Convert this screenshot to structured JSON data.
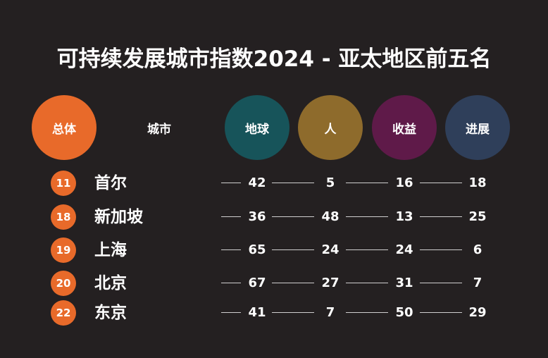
{
  "chart_data": {
    "type": "table",
    "title": "可持续发展城市指数2024 - 亚太地区前五名",
    "columns": [
      {
        "label": "总体",
        "color": "#e86a2a"
      },
      {
        "label": "城市"
      },
      {
        "label": "地球",
        "color": "#17545a"
      },
      {
        "label": "人",
        "color": "#8e6b2c"
      },
      {
        "label": "收益",
        "color": "#5f1a49"
      },
      {
        "label": "进展",
        "color": "#2f3f5a"
      }
    ],
    "rows": [
      {
        "rank": "11",
        "city": "首尔",
        "values": [
          "42",
          "5",
          "16",
          "18"
        ]
      },
      {
        "rank": "18",
        "city": "新加坡",
        "values": [
          "36",
          "48",
          "13",
          "25"
        ]
      },
      {
        "rank": "19",
        "city": "上海",
        "values": [
          "65",
          "24",
          "24",
          "6"
        ]
      },
      {
        "rank": "20",
        "city": "北京",
        "values": [
          "67",
          "27",
          "31",
          "7"
        ]
      },
      {
        "rank": "22",
        "city": "东京",
        "values": [
          "41",
          "7",
          "50",
          "29"
        ]
      }
    ]
  }
}
